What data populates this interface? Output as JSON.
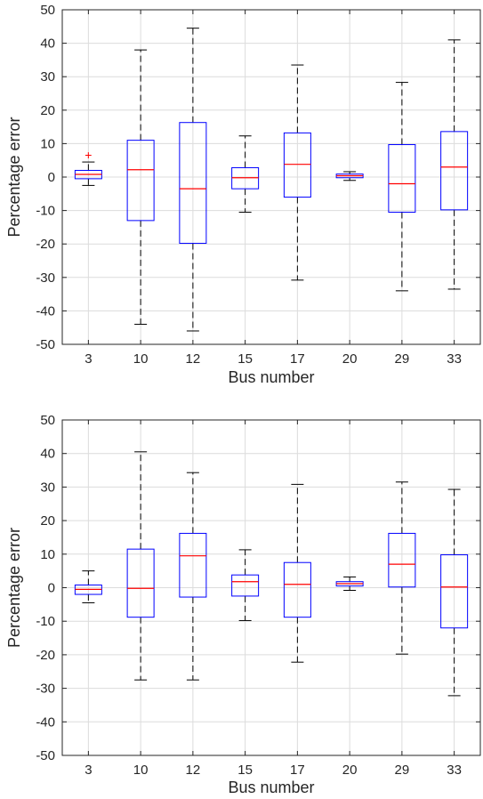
{
  "chart_data": [
    {
      "type": "box",
      "xlabel": "Bus number",
      "ylabel": "Percentage error",
      "ylim": [
        -50,
        50
      ],
      "yticks": [
        -50,
        -40,
        -30,
        -20,
        -10,
        0,
        10,
        20,
        30,
        40,
        50
      ],
      "grid": true,
      "categories": [
        "3",
        "10",
        "12",
        "15",
        "17",
        "20",
        "29",
        "33"
      ],
      "boxes": [
        {
          "min": -2.5,
          "q1": -0.5,
          "median": 0.8,
          "q3": 2.0,
          "max": 4.5,
          "outliers": [
            6.5
          ]
        },
        {
          "min": -44,
          "q1": -13,
          "median": 2.2,
          "q3": 11.0,
          "max": 38.0,
          "outliers": []
        },
        {
          "min": -46,
          "q1": -19.8,
          "median": -3.5,
          "q3": 16.3,
          "max": 44.5,
          "outliers": []
        },
        {
          "min": -10.5,
          "q1": -3.5,
          "median": -0.2,
          "q3": 2.8,
          "max": 12.3,
          "outliers": []
        },
        {
          "min": -30.8,
          "q1": -6.0,
          "median": 3.8,
          "q3": 13.2,
          "max": 33.5,
          "outliers": []
        },
        {
          "min": -1.0,
          "q1": -0.2,
          "median": 0.4,
          "q3": 0.9,
          "max": 1.6,
          "outliers": []
        },
        {
          "min": -34,
          "q1": -10.5,
          "median": -2.0,
          "q3": 9.7,
          "max": 28.3,
          "outliers": []
        },
        {
          "min": -33.5,
          "q1": -9.8,
          "median": 3.0,
          "q3": 13.6,
          "max": 41.0,
          "outliers": []
        }
      ]
    },
    {
      "type": "box",
      "xlabel": "Bus number",
      "ylabel": "Percentage error",
      "ylim": [
        -50,
        50
      ],
      "yticks": [
        -50,
        -40,
        -30,
        -20,
        -10,
        0,
        10,
        20,
        30,
        40,
        50
      ],
      "grid": true,
      "categories": [
        "3",
        "10",
        "12",
        "15",
        "17",
        "20",
        "29",
        "33"
      ],
      "boxes": [
        {
          "min": -4.5,
          "q1": -2.0,
          "median": -0.5,
          "q3": 0.8,
          "max": 5.0,
          "outliers": []
        },
        {
          "min": -27.5,
          "q1": -8.8,
          "median": -0.2,
          "q3": 11.5,
          "max": 40.5,
          "outliers": []
        },
        {
          "min": -27.5,
          "q1": -2.8,
          "median": 9.5,
          "q3": 16.2,
          "max": 34.3,
          "outliers": []
        },
        {
          "min": -9.8,
          "q1": -2.5,
          "median": 1.8,
          "q3": 3.8,
          "max": 11.3,
          "outliers": []
        },
        {
          "min": -22.2,
          "q1": -8.8,
          "median": 1.0,
          "q3": 7.5,
          "max": 30.8,
          "outliers": []
        },
        {
          "min": -0.8,
          "q1": 0.5,
          "median": 1.2,
          "q3": 1.8,
          "max": 3.2,
          "outliers": []
        },
        {
          "min": -19.8,
          "q1": 0.2,
          "median": 7.0,
          "q3": 16.2,
          "max": 31.5,
          "outliers": []
        },
        {
          "min": -32.2,
          "q1": -12.0,
          "median": 0.2,
          "q3": 9.8,
          "max": 29.3,
          "outliers": []
        }
      ]
    }
  ]
}
